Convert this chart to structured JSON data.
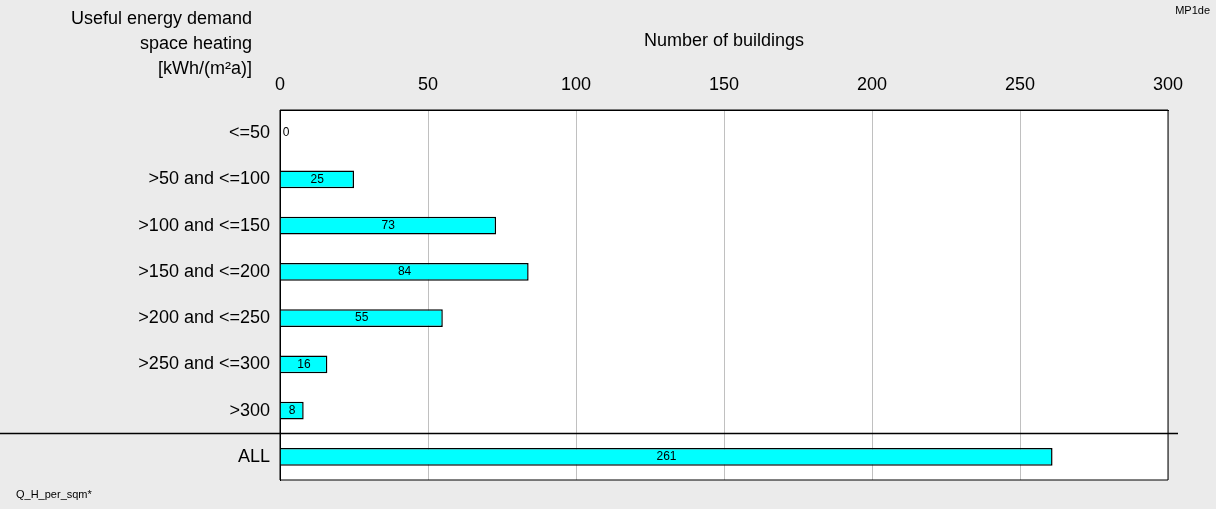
{
  "chart_data": {
    "type": "bar",
    "orientation": "horizontal",
    "title": "MP1de",
    "xlabel": "Number of buildings",
    "ylabel": "Useful energy demand space heating [kWh/(m²a)]",
    "categories": [
      "<=50",
      ">50 and <=100",
      ">100 and <=150",
      ">150 and <=200",
      ">200 and <=250",
      ">250 and <=300",
      ">300",
      "ALL"
    ],
    "values": [
      0,
      25,
      73,
      84,
      55,
      16,
      8,
      261
    ],
    "color": "#00ffff",
    "xlim": [
      0,
      300
    ],
    "xticks": [
      0,
      50,
      100,
      150,
      200,
      250,
      300
    ],
    "grid": "x",
    "data_labels": true,
    "annotations": [
      "Q_H_per_sqm*"
    ]
  }
}
